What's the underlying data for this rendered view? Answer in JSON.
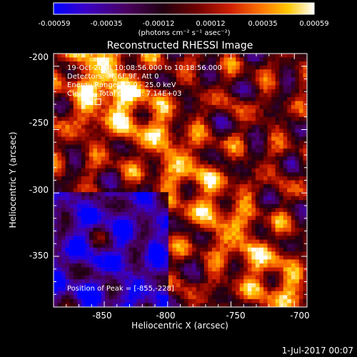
{
  "colorbar": {
    "ticks": [
      "-0.00059",
      "-0.00035",
      "-0.00012",
      "0.00012",
      "0.00035",
      "0.00059"
    ],
    "unit_label": "(photons cm⁻² s⁻¹ asec⁻²)",
    "range": [
      -0.00059,
      0.00059
    ]
  },
  "plot": {
    "title": "Reconstructed RHESSI Image",
    "annotations": [
      "19-Oct-2014 10:08:56.000 to 10:18:56.000",
      "Detectors: 3F 6F 9F, Att 0",
      "Energy Range: 12.0 - 25.0 keV",
      "Clean     Total counts: 7.14E+03"
    ],
    "peak_label": "Position of Peak = [-855,-228]",
    "xlabel": "Heliocentric X (arcsec)",
    "ylabel": "Heliocentric Y (arcsec)",
    "x_ticks": [
      "-850",
      "-800",
      "-750",
      "-700"
    ],
    "y_ticks": [
      "-200",
      "-250",
      "-300",
      "-350"
    ]
  },
  "footer": {
    "timestamp": "1-Jul-2017 00:07"
  },
  "chart_data": {
    "type": "heatmap",
    "title": "Reconstructed RHESSI Image",
    "xlabel": "Heliocentric X (arcsec)",
    "ylabel": "Heliocentric Y (arcsec)",
    "xlim": [
      -890,
      -690
    ],
    "ylim": [
      -390,
      -190
    ],
    "x_ticks": [
      -850,
      -800,
      -750,
      -700
    ],
    "y_ticks": [
      -200,
      -250,
      -300,
      -350
    ],
    "colorbar_range": [
      -0.00059,
      0.00059
    ],
    "peak_position": [
      -855,
      -228
    ],
    "colormap": [
      "#0000ff",
      "#2a0078",
      "#3a0a4a",
      "#000000",
      "#6a0000",
      "#c81e00",
      "#ff6a00",
      "#ffc000",
      "#fff3a8",
      "#ffffff"
    ]
  }
}
